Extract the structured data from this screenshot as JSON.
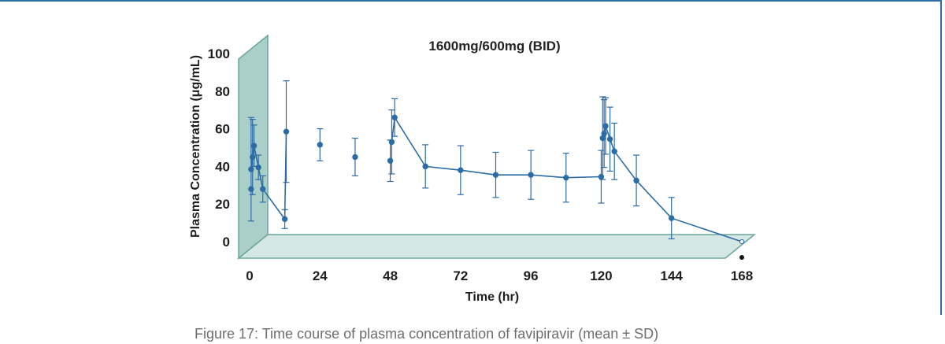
{
  "caption": "Figure 17: Time course of plasma concentration of favipiravir (mean ± SD)",
  "colors": {
    "series": "#2c6ca6",
    "back_wall": "#a9cfc8",
    "floor": "#d4e7e3",
    "edge": "#6aa79b",
    "frame": "#2f6fa6"
  },
  "chart_data": {
    "type": "line",
    "title": "1600mg/600mg (BID)",
    "xlabel": "Time (hr)",
    "ylabel": "Plasma Concentration (μg/mL)",
    "xlim": [
      0,
      168
    ],
    "ylim": [
      0,
      100
    ],
    "xticks": [
      0,
      24,
      48,
      72,
      96,
      120,
      144,
      168
    ],
    "yticks": [
      0,
      20,
      40,
      60,
      80,
      100
    ],
    "grid": false,
    "legend": "none",
    "series": [
      {
        "connected": [
          {
            "x": 0.5,
            "y": 38.5,
            "sd": 27.5
          },
          {
            "x": 1,
            "y": 45,
            "sd": 20
          },
          {
            "x": 1.5,
            "y": 51,
            "sd": 11
          },
          {
            "x": 3,
            "y": 39.5,
            "sd": 6.5
          },
          {
            "x": 4.5,
            "y": 28,
            "sd": 7
          },
          {
            "x": 12,
            "y": 12,
            "sd": 5
          },
          {
            "x": 12.5,
            "y": 58.5,
            "sd": 27
          }
        ],
        "trough_points": [
          {
            "x": 0.5,
            "y": 28,
            "sd": 0
          },
          {
            "x": 24,
            "y": 51.5,
            "sd": 8.5
          },
          {
            "x": 36,
            "y": 45,
            "sd": 10
          },
          {
            "x": 48,
            "y": 43,
            "sd": 11
          }
        ],
        "connected_2": [
          {
            "x": 48.5,
            "y": 53,
            "sd": 17
          },
          {
            "x": 49.5,
            "y": 66,
            "sd": 10
          },
          {
            "x": 60,
            "y": 40,
            "sd": 11.5
          },
          {
            "x": 72,
            "y": 38,
            "sd": 13
          },
          {
            "x": 84,
            "y": 35.5,
            "sd": 12
          },
          {
            "x": 96,
            "y": 35.5,
            "sd": 13
          },
          {
            "x": 108,
            "y": 34,
            "sd": 13
          },
          {
            "x": 120,
            "y": 34.5,
            "sd": 14
          }
        ],
        "connected_3": [
          {
            "x": 120.5,
            "y": 55,
            "sd": 22
          },
          {
            "x": 121,
            "y": 57.5,
            "sd": 18
          },
          {
            "x": 121.5,
            "y": 61.5,
            "sd": 15
          },
          {
            "x": 123,
            "y": 54.5,
            "sd": 17
          },
          {
            "x": 124.5,
            "y": 48,
            "sd": 15
          },
          {
            "x": 132,
            "y": 32.5,
            "sd": 13.5
          },
          {
            "x": 144,
            "y": 12.5,
            "sd": 11
          },
          {
            "x": 168,
            "y": 0,
            "sd": 0
          }
        ]
      }
    ]
  }
}
